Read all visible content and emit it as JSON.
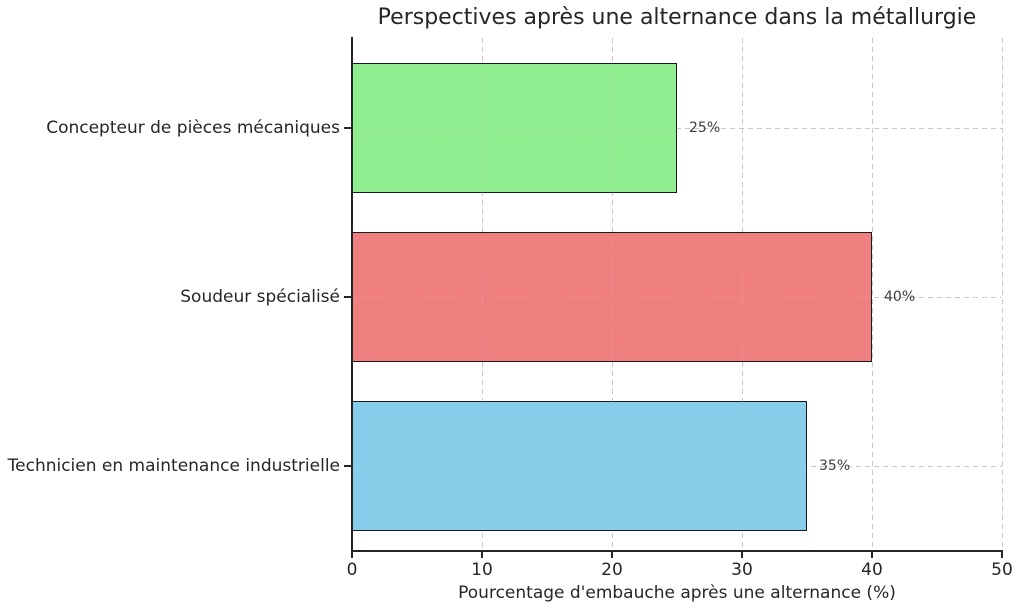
{
  "chart_data": {
    "type": "bar",
    "orientation": "horizontal",
    "title": "Perspectives après une alternance dans la métallurgie",
    "xlabel": "Pourcentage d'embauche après une alternance (%)",
    "ylabel": "",
    "categories": [
      "Concepteur de pièces mécaniques",
      "Soudeur spécialisé",
      "Technicien en maintenance industrielle"
    ],
    "values": [
      25,
      40,
      35
    ],
    "value_labels": [
      "25%",
      "40%",
      "35%"
    ],
    "bar_colors": [
      "#90ee90",
      "#f08080",
      "#87ceeb"
    ],
    "bar_edge_color": "#1a1a1a",
    "xlim": [
      0,
      50
    ],
    "xticks": [
      0,
      10,
      20,
      30,
      40,
      50
    ],
    "xtick_labels": [
      "0",
      "10",
      "20",
      "30",
      "40",
      "50"
    ],
    "grid": true,
    "grid_style": "dashed",
    "grid_color": "#c8c8c8",
    "legend_position": "none",
    "background_color": "#ffffff"
  }
}
